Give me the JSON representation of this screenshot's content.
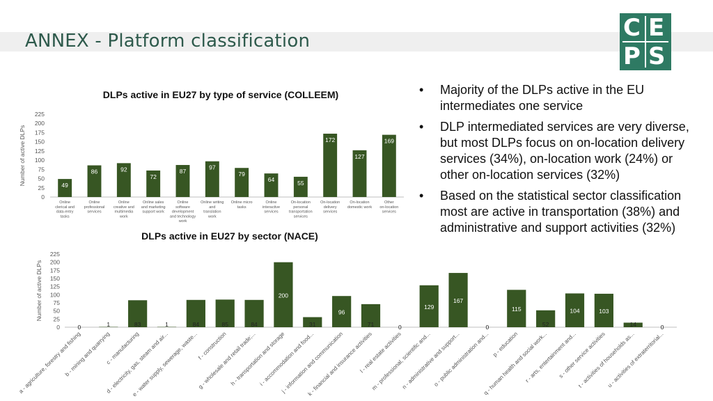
{
  "header": {
    "title": "ANNEX - Platform classification",
    "logo_text": [
      "C",
      "E",
      "P",
      "S"
    ],
    "colors": {
      "title": "#2e5a4c",
      "logo": "#2e7a63",
      "bar": "#375623"
    }
  },
  "bullets": [
    "Majority of the DLPs active in the EU intermediates one service",
    "DLP intermediated services are very diverse, but most DLPs focus on on-location delivery services (34%), on-location work (24%) or other on-location services (32%)",
    "Based on the statistical sector classification most are active in transportation (38%) and administrative and support activities (32%)"
  ],
  "chart_data": [
    {
      "type": "bar",
      "title": "DLPs active in EU27 by type of service (COLLEEM)",
      "ylabel": "Number of active DLPs",
      "ylim": [
        0,
        225
      ],
      "yticks": [
        0,
        25,
        50,
        75,
        100,
        125,
        150,
        175,
        200,
        225
      ],
      "categories": [
        "Online clerical and data-entry tasks",
        "Online professional services",
        "Online creative and multimedia work",
        "Online sales and marketing support work",
        "Online software development and technology work",
        "Online writing and translation work",
        "Online micro tasks",
        "Online interactive services",
        "On-location personal transportation services",
        "On-location delivery services",
        "On-location domestic work",
        "Other on-location services"
      ],
      "values": [
        49,
        86,
        92,
        72,
        87,
        97,
        79,
        64,
        55,
        172,
        127,
        169
      ],
      "grid": false,
      "legend": "none"
    },
    {
      "type": "bar",
      "title": "DLPs active in EU27 by sector (NACE)",
      "ylabel": "Number of active DLPs",
      "ylim": [
        0,
        225
      ],
      "yticks": [
        0,
        25,
        50,
        75,
        100,
        125,
        150,
        175,
        200,
        225
      ],
      "categories": [
        "a - agriculture, forestry and fishing",
        "b - mining and quarrying",
        "c - manufacturing",
        "d - electricity, gas, steam and air...",
        "e - water supply, sewerage, waste...",
        "f - construction",
        "g - wholesale and retail trade;...",
        "h - transportation and storage",
        "i - accommodation and food...",
        "j - information and communication",
        "k - financial and insurance activities",
        "l - real estate activities",
        "m - professional, scientific and...",
        "n - administrative and support...",
        "o - public administration and...",
        "p - education",
        "q - human health and social work...",
        "r - arts, entertainment and...",
        "s - other service activities",
        "t - activities of households as...",
        "u - activities of extraterritorial..."
      ],
      "values": [
        0,
        1,
        83,
        1,
        84,
        85,
        84,
        200,
        31,
        96,
        71,
        0,
        129,
        167,
        0,
        115,
        52,
        104,
        103,
        14,
        0
      ],
      "grid": false,
      "legend": "none"
    }
  ]
}
